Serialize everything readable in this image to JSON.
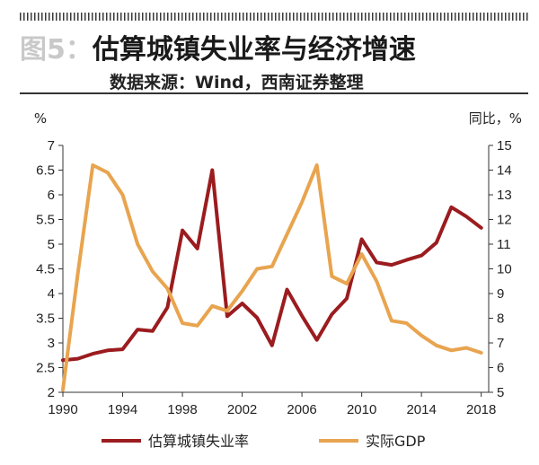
{
  "header": {
    "figure_label": "图5：",
    "title": "估算城镇失业率与经济增速",
    "source": "数据来源：Wind，西南证券整理"
  },
  "chart_data": {
    "type": "line",
    "left_unit": "%",
    "right_unit": "同比，%",
    "x_ticks": [
      "1990",
      "1994",
      "1998",
      "2002",
      "2006",
      "2010",
      "2014",
      "2018"
    ],
    "y_left_ticks": [
      "2",
      "2.5",
      "3",
      "3.5",
      "4",
      "4.5",
      "5",
      "5.5",
      "6",
      "6.5",
      "7"
    ],
    "y_right_ticks": [
      "5",
      "6",
      "7",
      "8",
      "9",
      "10",
      "11",
      "12",
      "13",
      "14",
      "15"
    ],
    "xlim": [
      1990,
      2018.5
    ],
    "ylim_left": [
      2,
      7
    ],
    "ylim_right": [
      5,
      15
    ],
    "grid": false,
    "legend_position": "bottom",
    "series": [
      {
        "name": "估算城镇失业率",
        "axis": "left",
        "color": "#9b1c1f",
        "x": [
          1990,
          1991,
          1992,
          1993,
          1994,
          1995,
          1996,
          1997,
          1998,
          1999,
          2000,
          2001,
          2002,
          2003,
          2004,
          2005,
          2006,
          2007,
          2008,
          2009,
          2010,
          2011,
          2012,
          2013,
          2014,
          2015,
          2016,
          2017,
          2018
        ],
        "values": [
          2.65,
          2.68,
          2.78,
          2.85,
          2.87,
          3.27,
          3.24,
          3.72,
          5.28,
          4.91,
          6.5,
          3.54,
          3.8,
          3.51,
          2.95,
          4.08,
          3.55,
          3.06,
          3.58,
          3.9,
          5.1,
          4.63,
          4.58,
          4.68,
          4.77,
          5.03,
          5.75,
          5.56,
          5.33
        ]
      },
      {
        "name": "实际GDP",
        "axis": "right",
        "color": "#e8a44f",
        "x": [
          1990,
          1991,
          1992,
          1993,
          1994,
          1995,
          1996,
          1997,
          1998,
          1999,
          2000,
          2001,
          2002,
          2003,
          2004,
          2005,
          2006,
          2007,
          2008,
          2009,
          2010,
          2011,
          2012,
          2013,
          2014,
          2015,
          2016,
          2017,
          2018
        ],
        "values": [
          5.1,
          9.8,
          14.2,
          13.9,
          13.0,
          11.0,
          9.9,
          9.2,
          7.8,
          7.7,
          8.5,
          8.3,
          9.1,
          10.0,
          10.1,
          11.4,
          12.7,
          14.2,
          9.7,
          9.4,
          10.6,
          9.5,
          7.9,
          7.8,
          7.3,
          6.9,
          6.7,
          6.8,
          6.6
        ]
      }
    ]
  }
}
